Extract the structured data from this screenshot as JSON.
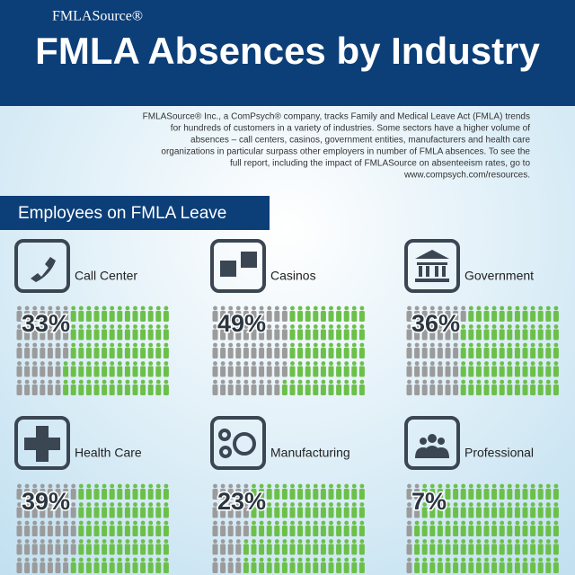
{
  "brand": "FMLASource®",
  "description": [
    "FMLASource® Inc., a ComPsych® company, tracks Family and Medical Leave Act (FMLA) trends",
    "for hundreds of customers in a variety of industries. Some sectors have a higher volume of",
    "absences – call centers, casinos, government entities, manufacturers and health care",
    "organizations in particular surpass other employers in number of FMLA absences. To see the",
    "full report, including the impact of FMLASource on absenteeism rates, go to",
    "www.compsych.com/resources."
  ],
  "chart_data": {
    "type": "pictogram",
    "title": "FMLA Absences by Industry",
    "subtitle": "Employees on FMLA Leave",
    "categories": [
      "Call Center",
      "Casinos",
      "Government",
      "Health Care",
      "Manufacturing",
      "Professional"
    ],
    "values": [
      33,
      49,
      36,
      39,
      23,
      7
    ],
    "value_labels": [
      "33%",
      "49%",
      "36%",
      "39%",
      "23%",
      "7%"
    ],
    "color": "#9b9b9b",
    "rest_color": "#6cc04a"
  }
}
